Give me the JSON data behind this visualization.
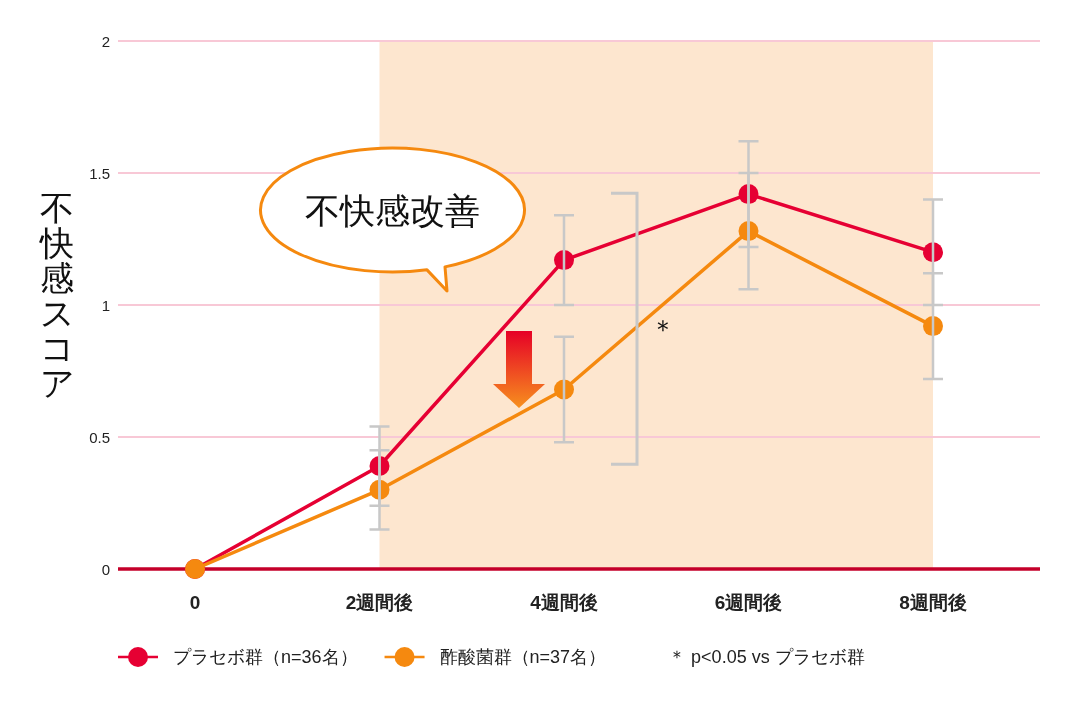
{
  "chart_data": {
    "type": "line",
    "categories": [
      "0",
      "2週間後",
      "4週間後",
      "6週間後",
      "8週間後"
    ],
    "ylabel": "不快感スコア",
    "series": [
      {
        "name": "プラセボ群（n=36名）",
        "color": "#e60033",
        "values": [
          0,
          0.39,
          1.17,
          1.42,
          1.2
        ],
        "errors": [
          null,
          0.15,
          0.17,
          0.2,
          0.2
        ]
      },
      {
        "name": "酢酸菌群（n=37名）",
        "color": "#f5890f",
        "values": [
          0,
          0.3,
          0.68,
          1.28,
          0.92
        ],
        "errors": [
          null,
          0.15,
          0.2,
          0.22,
          0.2
        ]
      }
    ],
    "ylim": [
      0,
      2
    ],
    "yticks": [
      0,
      0.5,
      1,
      1.5,
      2
    ],
    "grid": "y",
    "legend": "bottom",
    "marker": "circle",
    "line_style": "solid",
    "bands": [
      {
        "axis": "x",
        "from": "2週間後",
        "to": "8週間後",
        "color": "#fde6cf"
      }
    ],
    "annotations": [
      "不快感改善",
      "＊",
      "＊ p<0.05 vs プラセボ群"
    ]
  }
}
